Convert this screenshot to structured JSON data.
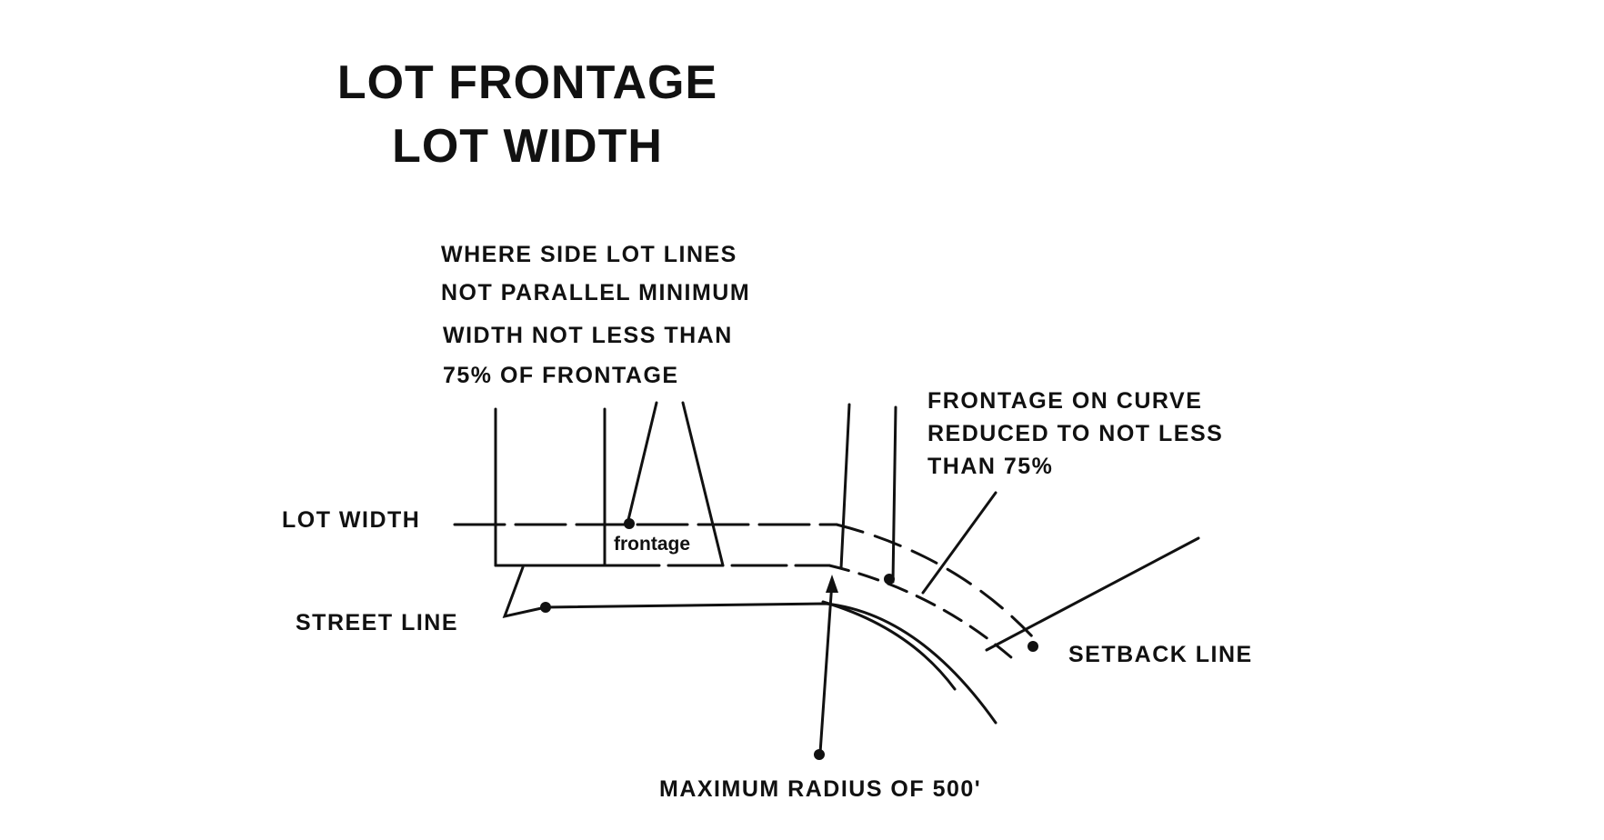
{
  "title": {
    "line1": "LOT FRONTAGE",
    "line2": "LOT WIDTH"
  },
  "notes": {
    "side_lot_lines": [
      "WHERE SIDE LOT LINES",
      "NOT PARALLEL MINIMUM",
      "WIDTH NOT LESS THAN",
      "75% OF FRONTAGE"
    ],
    "curve_frontage": [
      "FRONTAGE ON CURVE",
      "REDUCED TO NOT LESS",
      "THAN 75%"
    ]
  },
  "labels": {
    "lot_width": "LOT WIDTH",
    "street_line": "STREET LINE",
    "setback_line": "SETBACK LINE",
    "frontage": "frontage",
    "maximum_radius": "MAXIMUM RADIUS OF 500'"
  },
  "colors": {
    "ink": "#111111",
    "background": "#ffffff"
  }
}
